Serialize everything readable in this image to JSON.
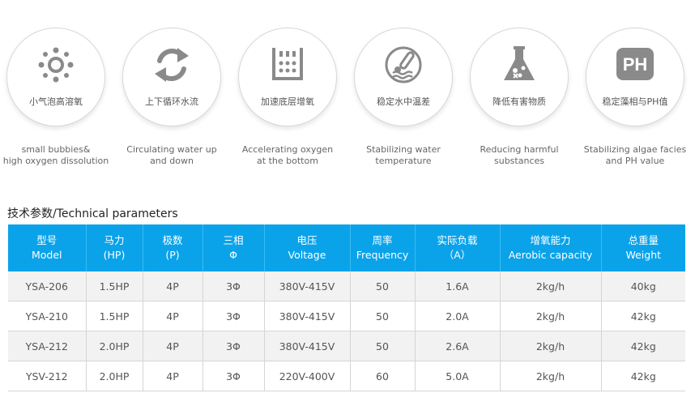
{
  "features": [
    {
      "icon": "bubbles-icon",
      "cn": "小气泡高溶氧",
      "en": [
        "small bubbies&",
        "high oxygen dissolution"
      ]
    },
    {
      "icon": "circulation-icon",
      "cn": "上下循环水流",
      "en": [
        "Circulating water up",
        "and down"
      ]
    },
    {
      "icon": "bottom-oxygen-icon",
      "cn": "加速底层增氧",
      "en": [
        "Accelerating oxygen",
        "at the bottom"
      ]
    },
    {
      "icon": "thermometer-icon",
      "cn": "稳定水中温差",
      "en": [
        "Stabilizing water",
        "temperature"
      ]
    },
    {
      "icon": "flask-icon",
      "cn": "降低有害物质",
      "en": [
        "Reducing harmful",
        "substances"
      ]
    },
    {
      "icon": "ph-icon",
      "cn": "稳定藻相与PH值",
      "en": [
        "Stabilizing algae facies",
        "and PH value"
      ],
      "icon_text": "PH"
    }
  ],
  "section_title": "技术参数/Technical parameters",
  "table": {
    "headers": [
      {
        "cn": "型号",
        "en": "Model"
      },
      {
        "cn": "马力",
        "en": "(HP)"
      },
      {
        "cn": "极数",
        "en": "(P)"
      },
      {
        "cn": "三相",
        "en": "Φ"
      },
      {
        "cn": "电压",
        "en": "Voltage"
      },
      {
        "cn": "周率",
        "en": "Frequency"
      },
      {
        "cn": "实际负载",
        "en": "（A）"
      },
      {
        "cn": "增氧能力",
        "en": "Aerobic capacity"
      },
      {
        "cn": "总重量",
        "en": "Weight"
      }
    ],
    "rows": [
      [
        "YSA-206",
        "1.5HP",
        "4P",
        "3Φ",
        "380V-415V",
        "50",
        "1.6A",
        "2kg/h",
        "40kg"
      ],
      [
        "YSA-210",
        "1.5HP",
        "4P",
        "3Φ",
        "380V-415V",
        "50",
        "2.0A",
        "2kg/h",
        "42kg"
      ],
      [
        "YSA-212",
        "2.0HP",
        "4P",
        "3Φ",
        "380V-415V",
        "50",
        "2.6A",
        "2kg/h",
        "42kg"
      ],
      [
        "YSV-212",
        "2.0HP",
        "4P",
        "3Φ",
        "220V-400V",
        "60",
        "5.0A",
        "2kg/h",
        "42kg"
      ]
    ]
  },
  "colors": {
    "header_bg": "#0aa3ea",
    "icon_gray": "#8a8a8a"
  }
}
